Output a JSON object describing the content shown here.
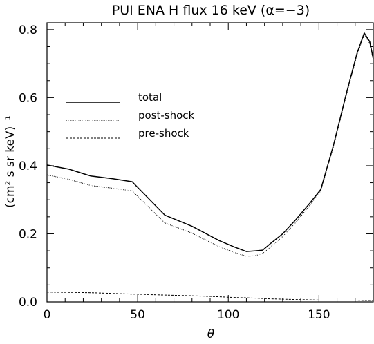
{
  "chart_data": {
    "type": "line",
    "title": "PUI ENA H flux 16 keV (α=−3)",
    "xlabel": "θ",
    "ylabel": "(cm² s sr keV)⁻¹",
    "xlim": [
      0,
      180
    ],
    "ylim": [
      0,
      0.82
    ],
    "xticks": [
      0,
      50,
      100,
      150
    ],
    "xtick_labels": [
      "0",
      "50",
      "100",
      "150"
    ],
    "yticks": [
      0,
      0.2,
      0.4,
      0.6,
      0.8
    ],
    "ytick_labels": [
      "0.0",
      "0.2",
      "0.4",
      "0.6",
      "0.8"
    ],
    "grid": false,
    "legend_position": "upper-left",
    "series": [
      {
        "name": "total",
        "style": "solid",
        "x": [
          0,
          12,
          24,
          36,
          47,
          65,
          80,
          95,
          103,
          110,
          115,
          119,
          123,
          130,
          137,
          145,
          151,
          158,
          165,
          171,
          175,
          178,
          180
        ],
        "y": [
          0.402,
          0.39,
          0.37,
          0.362,
          0.353,
          0.255,
          0.222,
          0.18,
          0.162,
          0.148,
          0.15,
          0.152,
          0.17,
          0.2,
          0.24,
          0.29,
          0.33,
          0.46,
          0.61,
          0.73,
          0.79,
          0.765,
          0.715
        ]
      },
      {
        "name": "post-shock",
        "style": "dotted",
        "x": [
          0,
          12,
          24,
          36,
          47,
          65,
          80,
          95,
          103,
          110,
          115,
          119,
          123,
          130,
          137,
          145,
          151,
          158,
          165,
          171,
          175,
          178,
          180
        ],
        "y": [
          0.373,
          0.36,
          0.342,
          0.334,
          0.326,
          0.232,
          0.202,
          0.162,
          0.146,
          0.134,
          0.136,
          0.142,
          0.16,
          0.192,
          0.232,
          0.284,
          0.326,
          0.455,
          0.605,
          0.725,
          0.785,
          0.76,
          0.71
        ]
      },
      {
        "name": "pre-shock",
        "style": "dashed",
        "x": [
          0,
          12,
          24,
          36,
          47,
          65,
          80,
          95,
          103,
          110,
          115,
          119,
          123,
          130,
          137,
          145,
          151,
          158,
          165,
          171,
          175,
          178,
          180
        ],
        "y": [
          0.029,
          0.028,
          0.027,
          0.025,
          0.023,
          0.02,
          0.018,
          0.015,
          0.013,
          0.012,
          0.011,
          0.01,
          0.009,
          0.008,
          0.007,
          0.006,
          0.005,
          0.005,
          0.005,
          0.005,
          0.004,
          0.004,
          0.004
        ]
      }
    ]
  }
}
